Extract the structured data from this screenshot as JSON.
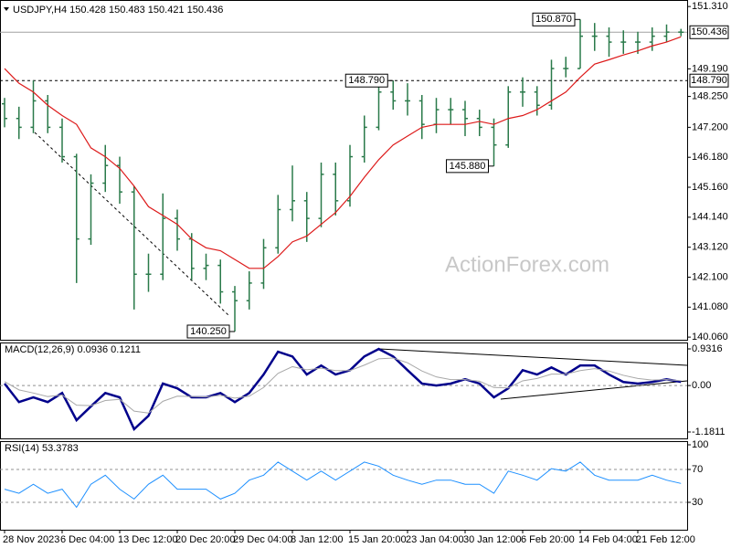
{
  "chart_data": [
    {
      "type": "ohlc",
      "title": "USDJPY,H4  150.428 150.483 150.421 150.436",
      "watermark": "ActionForex.com",
      "color": "#2a7a4a",
      "categories": [
        "28 Nov 2023",
        null,
        null,
        null,
        "6 Dec 04:00",
        null,
        null,
        null,
        "13 Dec 12:00",
        null,
        null,
        null,
        "20 Dec 20:00",
        null,
        null,
        null,
        "29 Dec 04:00",
        null,
        null,
        null,
        "8 Jan 12:00",
        null,
        null,
        null,
        "15 Jan 20:00",
        null,
        null,
        null,
        "23 Jan 04:00",
        null,
        null,
        null,
        "30 Jan 12:00",
        null,
        null,
        null,
        "6 Feb 20:00",
        null,
        null,
        null,
        "14 Feb 04:00",
        null,
        null,
        null,
        "21 Feb 12:00",
        null,
        null,
        null
      ],
      "open": [
        148.0,
        147.5,
        147.2,
        148.1,
        147.2,
        146.2,
        143.4,
        145.3,
        145.9,
        145.0,
        142.2,
        142.2,
        144.1,
        143.4,
        142.4,
        142.5,
        141.6,
        141.3,
        141.9,
        143.1,
        144.4,
        144.7,
        144.1,
        145.6,
        144.7,
        146.2,
        147.2,
        148.4,
        148.1,
        148.1,
        147.3,
        147.8,
        147.8,
        147.5,
        147.2,
        146.6,
        148.4,
        148.4,
        147.95,
        149.2,
        149.2,
        150.3,
        150.3,
        150.1,
        150.1,
        150.1,
        150.3,
        150.44
      ],
      "high": [
        148.2,
        147.9,
        148.8,
        148.3,
        147.5,
        146.3,
        145.6,
        146.6,
        146.2,
        145.2,
        142.9,
        144.95,
        144.4,
        143.6,
        142.9,
        142.7,
        141.8,
        142.3,
        143.4,
        144.9,
        145.9,
        145.0,
        146.0,
        146.0,
        146.6,
        147.6,
        148.6,
        148.79,
        148.7,
        148.3,
        148.2,
        148.2,
        148.1,
        147.8,
        147.5,
        148.6,
        148.9,
        148.6,
        149.5,
        149.6,
        150.87,
        150.75,
        150.6,
        150.5,
        150.45,
        150.6,
        150.7,
        150.55
      ],
      "low": [
        147.2,
        146.8,
        147.0,
        147.0,
        146.0,
        141.9,
        143.2,
        145.0,
        144.6,
        141.0,
        141.6,
        142.0,
        143.0,
        142.0,
        142.0,
        141.2,
        140.25,
        141.0,
        141.7,
        142.9,
        144.0,
        143.3,
        143.8,
        144.2,
        144.5,
        146.0,
        147.1,
        147.8,
        147.6,
        146.8,
        147.0,
        147.3,
        146.9,
        146.9,
        145.88,
        146.5,
        147.9,
        147.6,
        147.8,
        148.9,
        149.2,
        149.8,
        149.6,
        149.7,
        149.7,
        149.8,
        150.1,
        150.3
      ],
      "close": [
        147.5,
        147.2,
        148.1,
        147.2,
        146.2,
        143.4,
        145.3,
        145.9,
        145.0,
        142.2,
        142.2,
        144.1,
        143.4,
        142.4,
        142.5,
        141.6,
        141.3,
        141.9,
        143.1,
        144.4,
        144.7,
        144.1,
        145.6,
        144.7,
        146.2,
        147.2,
        148.4,
        148.1,
        148.1,
        147.3,
        147.8,
        147.8,
        147.5,
        147.2,
        146.6,
        148.4,
        148.4,
        147.95,
        149.2,
        149.2,
        150.3,
        150.3,
        150.1,
        150.1,
        150.1,
        150.3,
        150.44,
        150.436
      ],
      "overlay": {
        "color": "#dd1a1a",
        "values": [
          149.2,
          148.7,
          148.4,
          147.95,
          147.6,
          147.3,
          146.5,
          146.2,
          145.8,
          145.2,
          144.5,
          144.2,
          143.9,
          143.4,
          143.1,
          143.0,
          142.7,
          142.4,
          142.4,
          142.8,
          143.3,
          143.5,
          143.9,
          144.3,
          144.85,
          145.5,
          146.1,
          146.6,
          146.9,
          147.2,
          147.3,
          147.3,
          147.3,
          147.4,
          147.3,
          147.5,
          147.6,
          147.8,
          148.1,
          148.4,
          148.9,
          149.35,
          149.5,
          149.66,
          149.8,
          149.97,
          150.1,
          150.28
        ]
      },
      "price_labels": [
        {
          "value": 150.87,
          "label": "150.870"
        },
        {
          "value": 148.79,
          "label": "148.790"
        },
        {
          "value": 145.88,
          "label": "145.880"
        },
        {
          "value": 140.25,
          "label": "140.250"
        }
      ],
      "levels": [
        {
          "value": 148.79,
          "label": "148.790"
        }
      ],
      "last_price": 150.436,
      "ylim": [
        139.97,
        151.47
      ],
      "yticks": [
        {
          "value": 151.31,
          "label": "151.310"
        },
        {
          "value": 149.19,
          "label": "149.190"
        },
        {
          "value": 148.25,
          "label": "148.250"
        },
        {
          "value": 147.2,
          "label": "147.200"
        },
        {
          "value": 146.18,
          "label": "146.180"
        },
        {
          "value": 145.16,
          "label": "145.160"
        },
        {
          "value": 144.14,
          "label": "144.140"
        },
        {
          "value": 143.12,
          "label": "143.120"
        },
        {
          "value": 142.1,
          "label": "142.100"
        },
        {
          "value": 141.08,
          "label": "141.080"
        },
        {
          "value": 140.06,
          "label": "140.060"
        }
      ]
    },
    {
      "type": "line",
      "title": "MACD(12,26,9) 0.0936 0.1211",
      "series": [
        {
          "color": "#00008b",
          "values": [
            0.05,
            -0.42,
            -0.3,
            -0.42,
            -0.19,
            -0.88,
            -0.53,
            -0.19,
            -0.3,
            -1.11,
            -0.77,
            0.05,
            -0.07,
            -0.3,
            -0.3,
            -0.19,
            -0.42,
            -0.19,
            0.28,
            0.86,
            0.74,
            0.28,
            0.51,
            0.28,
            0.39,
            0.74,
            0.93,
            0.74,
            0.39,
            0.05,
            0,
            0.05,
            0.16,
            0.05,
            -0.3,
            -0.07,
            0.39,
            0.28,
            0.46,
            0.28,
            0.51,
            0.51,
            0.28,
            0.09,
            0.05,
            0.09,
            0.16,
            0.0936
          ]
        },
        {
          "color": "#a8a8a8",
          "values": [
            0.1,
            -0.11,
            -0.19,
            -0.28,
            -0.24,
            -0.5,
            -0.51,
            -0.38,
            -0.35,
            -0.65,
            -0.7,
            -0.4,
            -0.27,
            -0.28,
            -0.29,
            -0.25,
            -0.32,
            -0.27,
            -0.05,
            0.31,
            0.48,
            0.4,
            0.44,
            0.38,
            0.38,
            0.52,
            0.68,
            0.7,
            0.58,
            0.37,
            0.22,
            0.15,
            0.15,
            0.11,
            -0.05,
            -0.06,
            0.12,
            0.18,
            0.29,
            0.29,
            0.38,
            0.43,
            0.37,
            0.26,
            0.18,
            0.14,
            0.15,
            0.1211
          ]
        }
      ],
      "levels": [
        0
      ],
      "ylim": [
        -1.344,
        1.048
      ],
      "yticks": [
        0.9316,
        {
          "value": 0,
          "label": "0.00"
        },
        -1.1811
      ]
    },
    {
      "type": "line",
      "title": "RSI(14) 53.3783",
      "series": [
        {
          "color": "#1e90ff",
          "values": [
            46,
            41,
            52,
            41,
            46,
            24,
            52,
            63,
            46,
            34,
            52,
            63,
            46,
            46,
            46,
            34,
            41,
            57,
            63,
            79,
            68,
            57,
            68,
            57,
            68,
            79,
            74,
            63,
            57,
            52,
            57,
            57,
            52,
            52,
            41,
            68,
            63,
            57,
            71,
            68,
            79,
            63,
            57,
            57,
            57,
            63,
            57,
            53
          ]
        }
      ],
      "levels": [
        70,
        30
      ],
      "ylim": [
        0,
        100
      ],
      "yticks": [
        100,
        70,
        30
      ]
    }
  ]
}
